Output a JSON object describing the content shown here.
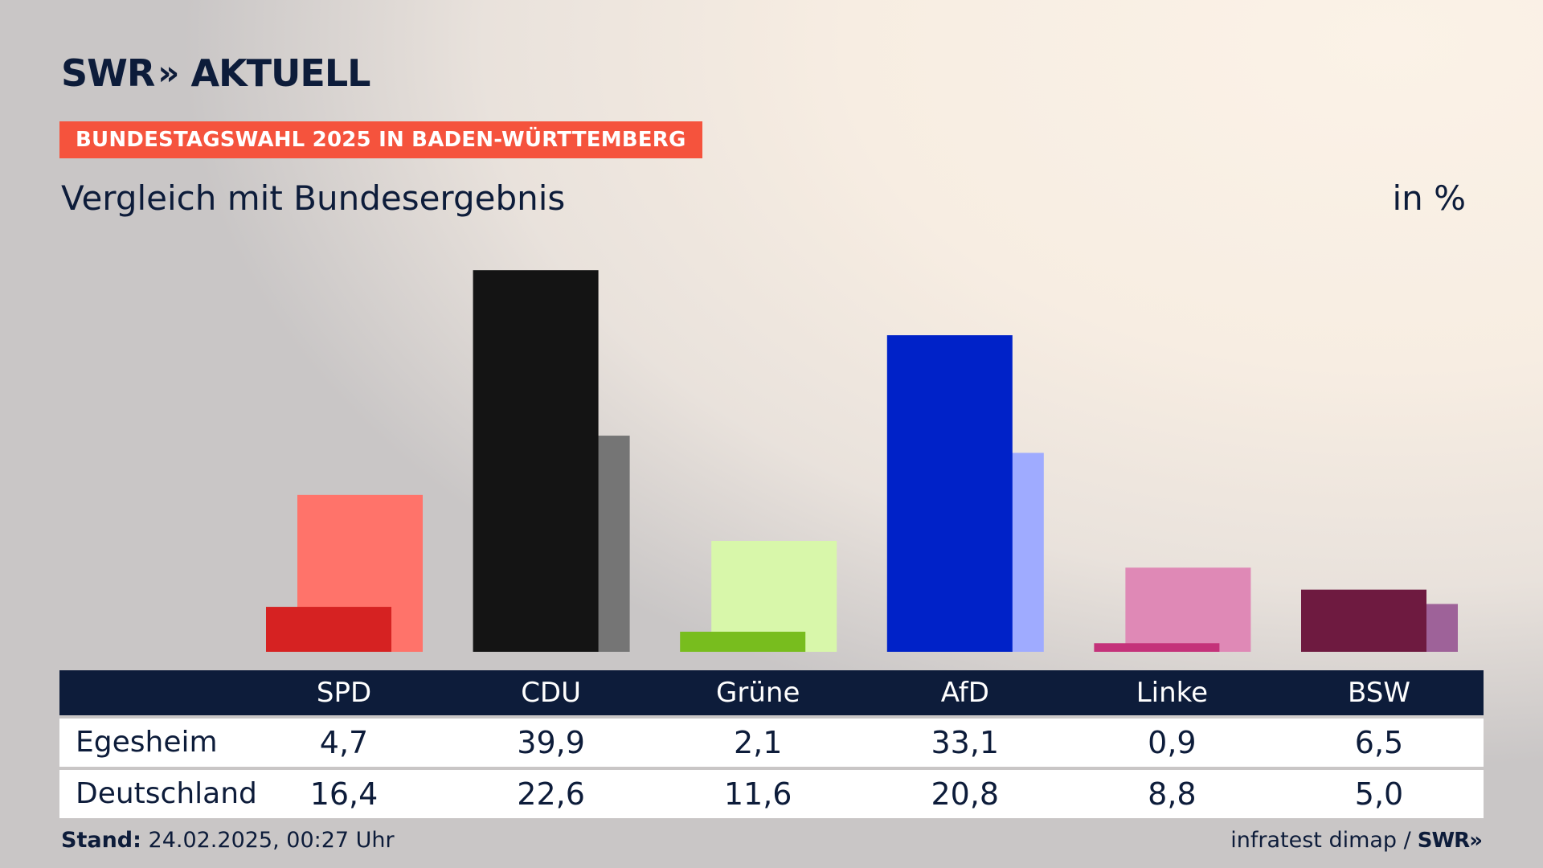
{
  "logo": {
    "left": "SWR",
    "chevrons": "»",
    "right": "AKTUELL"
  },
  "banner": "BUNDESTAGSWAHL 2025 IN BADEN-WÜRTTEMBERG",
  "subtitle": "Vergleich mit Bundesergebnis",
  "unit": "in %",
  "chart_data": {
    "type": "bar",
    "categories": [
      "SPD",
      "CDU",
      "Grüne",
      "AfD",
      "Linke",
      "BSW"
    ],
    "series": [
      {
        "name": "Egesheim",
        "values": [
          4.7,
          39.9,
          2.1,
          33.1,
          0.9,
          6.5
        ],
        "colors": [
          "#d62222",
          "#141414",
          "#78bd1e",
          "#0022c8",
          "#c4327a",
          "#6e1a40"
        ]
      },
      {
        "name": "Deutschland",
        "values": [
          16.4,
          22.6,
          11.6,
          20.8,
          8.8,
          5.0
        ],
        "colors": [
          "#ff736a",
          "#757575",
          "#d8f7aa",
          "#9fabff",
          "#df89b6",
          "#9e6299"
        ]
      }
    ],
    "ylim": [
      0,
      40
    ]
  },
  "table": {
    "header_label": "",
    "rows": [
      {
        "label": "Egesheim",
        "values": [
          "4,7",
          "39,9",
          "2,1",
          "33,1",
          "0,9",
          "6,5"
        ]
      },
      {
        "label": "Deutschland",
        "values": [
          "16,4",
          "22,6",
          "11,6",
          "20,8",
          "8,8",
          "5,0"
        ]
      }
    ]
  },
  "footer": {
    "stand_label": "Stand:",
    "stand_value": "24.02.2025, 00:27 Uhr",
    "source": "infratest dimap /",
    "source_logo": "SWR»"
  }
}
